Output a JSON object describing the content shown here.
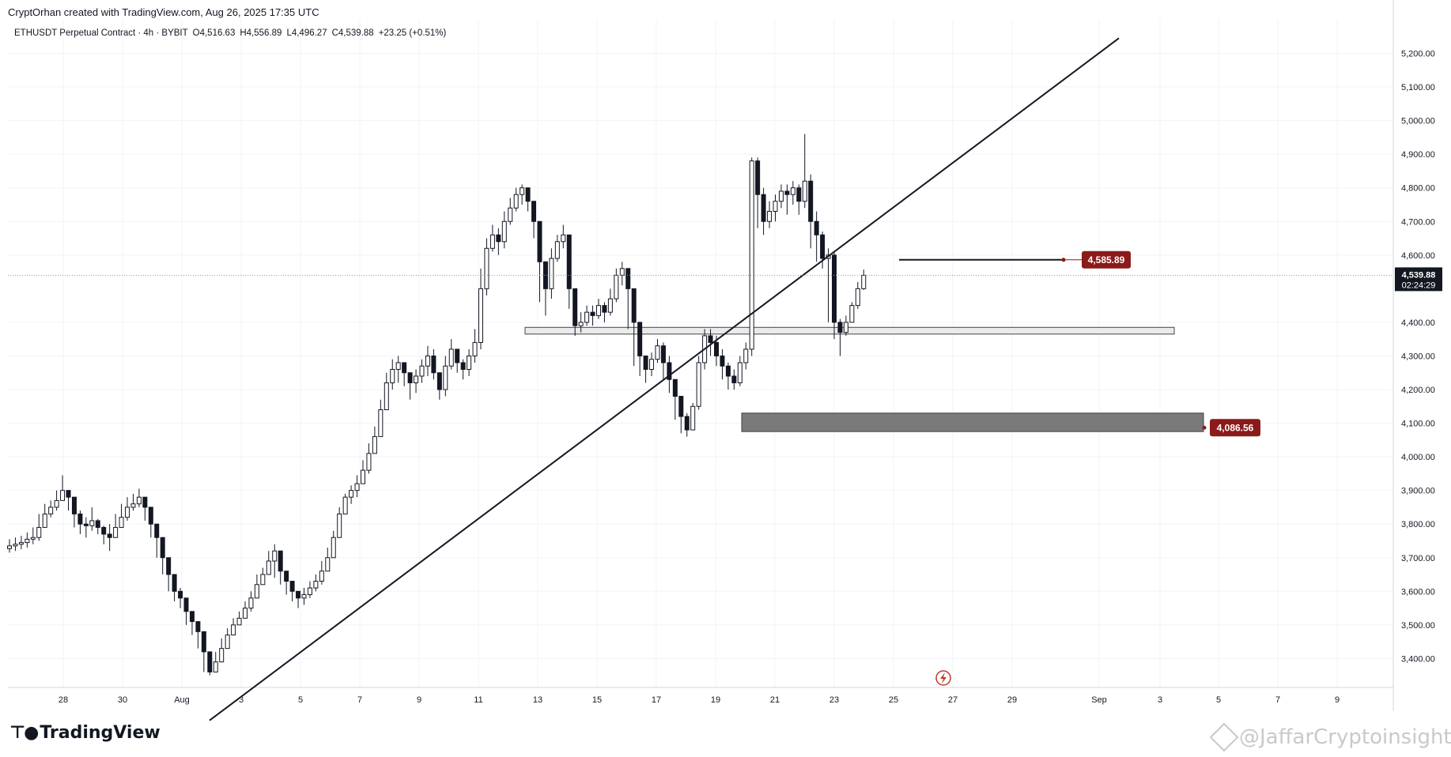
{
  "header": {
    "credit": "CryptOrhan created with TradingView.com, Aug 26, 2025 17:35 UTC"
  },
  "legend": {
    "symbol": "ETHUSDT Perpetual Contract · 4h · BYBIT",
    "open": "O4,516.63",
    "high": "H4,556.89",
    "low": "L4,496.27",
    "close": "C4,539.88",
    "change": "+23.25 (+0.51%)",
    "change_color": "#089981"
  },
  "price_tag": {
    "price": "4,539.88",
    "countdown": "02:24:29"
  },
  "footer": {
    "logo_text": "TradingView",
    "watermark": "@JaffarCryptoinsights"
  },
  "colors": {
    "up": "#ffffff",
    "down": "#131722",
    "label": "#8b1a1a",
    "zone_light": "#eaeaea",
    "zone_dark": "#7a7a7a"
  },
  "chart_data": {
    "type": "candlestick",
    "interval": "4h",
    "x_ticks": [
      "28",
      "30",
      "Aug",
      "3",
      "5",
      "7",
      "9",
      "11",
      "13",
      "15",
      "17",
      "19",
      "21",
      "23",
      "25",
      "27",
      "29",
      "Sep",
      "3",
      "5",
      "7",
      "9"
    ],
    "y_ticks": [
      "5,200.00",
      "5,100.00",
      "5,000.00",
      "4,900.00",
      "4,800.00",
      "4,700.00",
      "4,600.00",
      "4,400.00",
      "4,300.00",
      "4,200.00",
      "4,100.00",
      "4,000.00",
      "3,900.00",
      "3,800.00",
      "3,700.00",
      "3,600.00",
      "3,500.00",
      "3,400.00"
    ],
    "ylim": [
      3310,
      5250
    ],
    "last_price": 4539.88,
    "levels": [
      {
        "label": "4,585.89",
        "value": 4585.89
      },
      {
        "label": "4,086.56",
        "value": 4086.56
      }
    ],
    "zones": [
      {
        "name": "support-zone",
        "low": 4365,
        "high": 4385
      },
      {
        "name": "demand-zone",
        "low": 4075,
        "high": 4130
      }
    ],
    "trendline": {
      "start": [
        0,
        3310
      ],
      "end": [
        1,
        5245
      ]
    },
    "closes": [
      3735,
      3740,
      3745,
      3755,
      3760,
      3790,
      3830,
      3850,
      3870,
      3900,
      3880,
      3830,
      3800,
      3795,
      3810,
      3790,
      3770,
      3760,
      3790,
      3820,
      3850,
      3860,
      3880,
      3850,
      3800,
      3760,
      3700,
      3650,
      3600,
      3580,
      3540,
      3510,
      3480,
      3420,
      3360,
      3390,
      3430,
      3470,
      3500,
      3520,
      3550,
      3580,
      3620,
      3650,
      3690,
      3720,
      3660,
      3630,
      3600,
      3580,
      3590,
      3610,
      3630,
      3660,
      3700,
      3760,
      3830,
      3880,
      3900,
      3920,
      3960,
      4010,
      4060,
      4140,
      4220,
      4260,
      4280,
      4250,
      4220,
      4240,
      4270,
      4300,
      4250,
      4200,
      4270,
      4320,
      4280,
      4260,
      4300,
      4340,
      4500,
      4620,
      4660,
      4640,
      4700,
      4740,
      4780,
      4800,
      4760,
      4700,
      4580,
      4500,
      4590,
      4640,
      4660,
      4500,
      4390,
      4400,
      4430,
      4420,
      4450,
      4430,
      4470,
      4540,
      4560,
      4500,
      4400,
      4300,
      4260,
      4290,
      4330,
      4280,
      4230,
      4180,
      4120,
      4080,
      4150,
      4280,
      4360,
      4340,
      4300,
      4270,
      4240,
      4220,
      4280,
      4320,
      4880,
      4780,
      4700,
      4730,
      4760,
      4790,
      4780,
      4800,
      4760,
      4820,
      4700,
      4660,
      4590,
      4600,
      4400,
      4370,
      4400,
      4450,
      4500,
      4539.88
    ],
    "highs": [
      3755,
      3760,
      3765,
      3775,
      3790,
      3830,
      3860,
      3870,
      3900,
      3945,
      3900,
      3880,
      3840,
      3820,
      3850,
      3815,
      3795,
      3800,
      3830,
      3860,
      3880,
      3890,
      3905,
      3870,
      3830,
      3790,
      3730,
      3690,
      3635,
      3610,
      3560,
      3540,
      3510,
      3450,
      3400,
      3420,
      3460,
      3490,
      3520,
      3540,
      3570,
      3600,
      3650,
      3670,
      3720,
      3740,
      3710,
      3660,
      3630,
      3600,
      3610,
      3630,
      3650,
      3690,
      3730,
      3780,
      3850,
      3890,
      3915,
      3945,
      3990,
      4040,
      4090,
      4170,
      4250,
      4290,
      4300,
      4280,
      4250,
      4260,
      4290,
      4330,
      4320,
      4250,
      4300,
      4350,
      4320,
      4290,
      4320,
      4380,
      4560,
      4650,
      4690,
      4680,
      4730,
      4770,
      4800,
      4810,
      4800,
      4760,
      4640,
      4580,
      4620,
      4660,
      4690,
      4650,
      4440,
      4430,
      4450,
      4450,
      4470,
      4460,
      4500,
      4560,
      4580,
      4560,
      4470,
      4400,
      4300,
      4310,
      4350,
      4340,
      4300,
      4230,
      4170,
      4130,
      4160,
      4300,
      4380,
      4380,
      4360,
      4320,
      4280,
      4260,
      4300,
      4340,
      4890,
      4890,
      4800,
      4760,
      4780,
      4810,
      4810,
      4820,
      4810,
      4960,
      4840,
      4730,
      4670,
      4620,
      4610,
      4410,
      4420,
      4460,
      4520,
      4556.89
    ],
    "lows": [
      3715,
      3720,
      3725,
      3730,
      3740,
      3750,
      3790,
      3820,
      3840,
      3870,
      3840,
      3790,
      3770,
      3760,
      3780,
      3770,
      3740,
      3720,
      3770,
      3790,
      3810,
      3840,
      3850,
      3810,
      3760,
      3700,
      3650,
      3600,
      3570,
      3550,
      3500,
      3470,
      3430,
      3360,
      3350,
      3360,
      3390,
      3430,
      3470,
      3500,
      3520,
      3540,
      3580,
      3620,
      3650,
      3640,
      3620,
      3590,
      3570,
      3550,
      3560,
      3580,
      3600,
      3620,
      3660,
      3700,
      3760,
      3830,
      3860,
      3880,
      3920,
      3950,
      4010,
      4060,
      4140,
      4200,
      4220,
      4210,
      4170,
      4190,
      4220,
      4240,
      4230,
      4170,
      4180,
      4260,
      4250,
      4230,
      4240,
      4280,
      4320,
      4480,
      4610,
      4600,
      4620,
      4690,
      4730,
      4750,
      4730,
      4650,
      4460,
      4420,
      4470,
      4580,
      4620,
      4440,
      4360,
      4370,
      4390,
      4390,
      4410,
      4400,
      4420,
      4460,
      4510,
      4380,
      4270,
      4240,
      4220,
      4240,
      4280,
      4230,
      4190,
      4110,
      4070,
      4060,
      4080,
      4140,
      4260,
      4300,
      4270,
      4230,
      4200,
      4200,
      4210,
      4260,
      4300,
      4680,
      4660,
      4680,
      4700,
      4740,
      4720,
      4750,
      4720,
      4740,
      4620,
      4580,
      4560,
      4400,
      4350,
      4300,
      4360,
      4400,
      4440,
      4496.27
    ]
  }
}
